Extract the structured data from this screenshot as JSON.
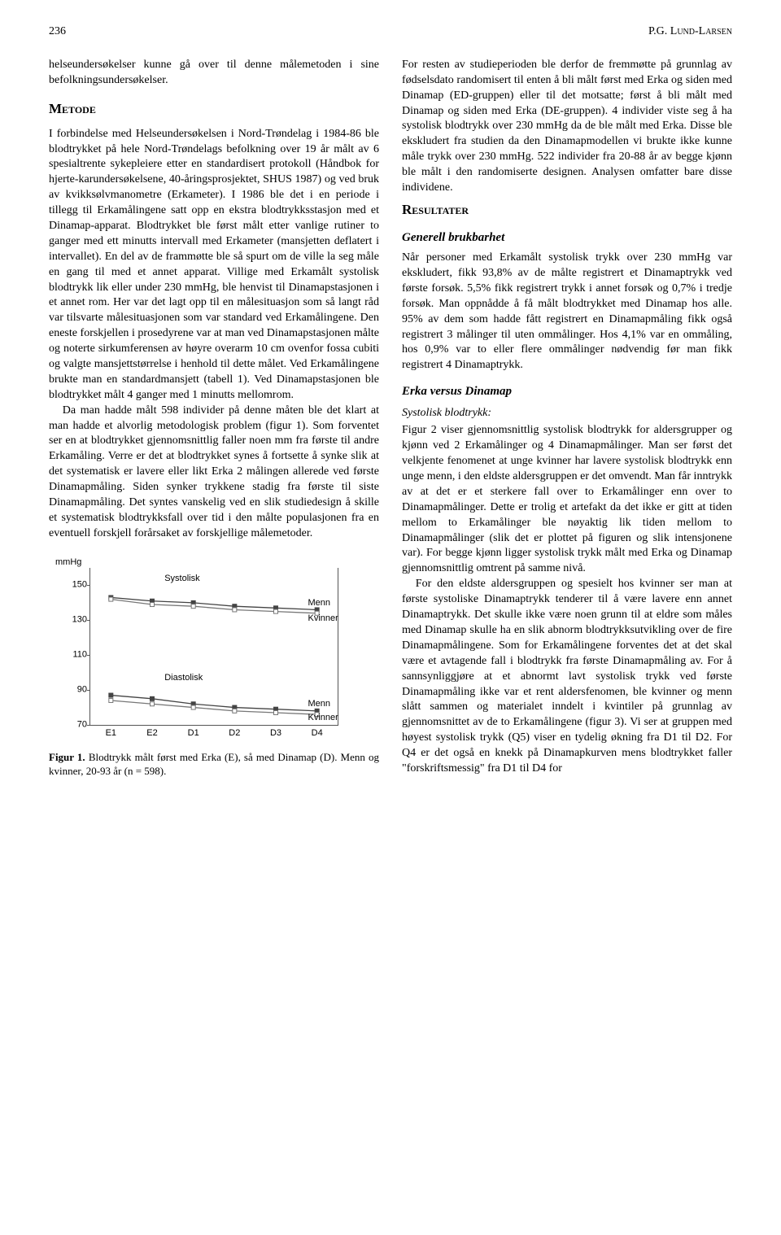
{
  "header": {
    "page_number": "236",
    "author_header": "P.G. Lund-Larsen"
  },
  "left_col": {
    "intro": "helseundersøkelser kunne gå over til denne målemetoden i sine befolkningsundersøkelser.",
    "metode_heading": "Metode",
    "metode_body": "I forbindelse med Helseundersøkelsen i Nord-Trøndelag i 1984-86 ble blodtrykket på hele Nord-Trøndelags befolkning over 19 år målt av 6 spesialtrente sykepleiere etter en standardisert protokoll (Håndbok for hjerte-karundersøkelsene, 40-åringsprosjektet, SHUS 1987) og ved bruk av kvikksølvmanometre (Erkameter). I 1986 ble det i en periode i tillegg til Erkamålingene satt opp en ekstra blodtrykksstasjon med et Dinamap-apparat. Blodtrykket ble først målt etter vanlige rutiner to ganger med ett minutts intervall med Erkameter (mansjetten deflatert i intervallet). En del av de frammøtte ble så spurt om de ville la seg måle en gang til med et annet apparat. Villige med Erkamålt systolisk blodtrykk lik eller under 230 mmHg, ble henvist til Dinamapstasjonen i et annet rom. Her var det lagt opp til en målesituasjon som så langt råd var tilsvarte målesituasjonen som var standard ved Erkamålingene. Den eneste forskjellen i prosedyrene var at man ved Dinamapstasjonen målte og noterte sirkumferensen av høyre overarm 10 cm ovenfor fossa cubiti og valgte mansjettstørrelse i henhold til dette målet. Ved Erkamålingene brukte man en standardmansjett (tabell 1). Ved Dinamapstasjonen ble blodtrykket målt 4 ganger med 1 minutts mellomrom.",
    "metode_body2": "Da man hadde målt 598 individer på denne måten ble det klart at man hadde et alvorlig metodologisk problem (figur 1). Som forventet ser en at blodtrykket gjennomsnittlig faller noen mm fra første til andre Erkamåling. Verre er det at blodtrykket synes å fortsette å synke slik at det systematisk er lavere eller likt Erka 2 målingen allerede ved første Dinamapmåling. Siden synker trykkene stadig fra første til siste Dinamapmåling. Det syntes vanskelig ved en slik studiedesign å skille et systematisk blodtrykksfall over tid i den målte populasjonen fra en eventuell forskjell forårsaket av forskjellige målemetoder.",
    "caption_label": "Figur 1.",
    "caption_text": "Blodtrykk målt først med Erka (E), så med Dinamap (D). Menn og kvinner, 20-93 år (n = 598)."
  },
  "right_col": {
    "para1": "For resten av studieperioden ble derfor de fremmøtte på grunnlag av fødselsdato randomisert til enten å bli målt først med Erka og siden med Dinamap (ED-gruppen) eller til det motsatte; først å bli målt med Dinamap og siden med Erka (DE-gruppen). 4 individer viste seg å ha systolisk blodtrykk over 230 mmHg da de ble målt med Erka. Disse ble ekskludert fra studien da den Dinamapmodellen vi brukte ikke kunne måle trykk over 230 mmHg. 522 individer fra 20-88 år av begge kjønn ble målt i den randomiserte designen. Analysen omfatter bare disse individene.",
    "resultater_heading": "Resultater",
    "sub1": "Generell brukbarhet",
    "para2": "Når personer med Erkamålt systolisk trykk over 230 mmHg var ekskludert, fikk 93,8% av de målte registrert et Dinamaptrykk ved første forsøk. 5,5% fikk registrert trykk i annet forsøk og 0,7% i tredje forsøk. Man oppnådde å få målt blodtrykket med Dinamap hos alle. 95% av dem som hadde fått registrert en Dinamapmåling fikk også registrert 3 målinger til uten ommålinger. Hos 4,1% var en ommåling, hos 0,9% var to eller flere ommålinger nødvendig før man fikk registrert 4 Dinamaptrykk.",
    "sub2": "Erka versus Dinamap",
    "sub2b": "Systolisk blodtrykk:",
    "para3": "Figur 2 viser gjennomsnittlig systolisk blodtrykk for aldersgrupper og kjønn ved 2 Erkamålinger og 4 Dinamapmålinger. Man ser først det velkjente fenomenet at unge kvinner har lavere systolisk blodtrykk enn unge menn, i den eldste aldersgruppen er det omvendt. Man får inntrykk av at det er et sterkere fall over to Erkamålinger enn over to Dinamapmålinger. Dette er trolig et artefakt da det ikke er gitt at tiden mellom to Erkamålinger ble nøyaktig lik tiden mellom to Dinamapmålinger (slik det er plottet på figuren og slik intensjonene var). For begge kjønn ligger systolisk trykk målt med Erka og Dinamap gjennomsnittlig omtrent på samme nivå.",
    "para4": "For den eldste aldersgruppen og spesielt hos kvinner ser man at første systoliske Dinamaptrykk tenderer til å være lavere enn annet Dinamaptrykk. Det skulle ikke være noen grunn til at eldre som måles med Dinamap skulle ha en slik abnorm blodtrykksutvikling over de fire Dinamapmålingene. Som for Erkamålingene forventes det at det skal være et avtagende fall i blodtrykk fra første Dinamapmåling av. For å sannsynliggjøre at et abnormt lavt systolisk trykk ved første Dinamapmåling ikke var et rent aldersfenomen, ble kvinner og menn slått sammen og materialet inndelt i kvintiler på grunnlag av gjennomsnittet av de to Erkamålingene (figur 3). Vi ser at gruppen med høyest systolisk trykk (Q5) viser en tydelig økning fra D1 til D2. For Q4 er det også en knekk på Dinamapkurven mens blodtrykket faller \"forskriftsmessig\" fra D1 til D4 for"
  },
  "chart": {
    "type": "line",
    "y_unit": "mmHg",
    "ylim": [
      70,
      160
    ],
    "yticks": [
      70,
      90,
      110,
      130,
      150
    ],
    "x_labels": [
      "E1",
      "E2",
      "D1",
      "D2",
      "D3",
      "D4"
    ],
    "groups": {
      "systolisk_label": "Systolisk",
      "diastolisk_label": "Diastolisk"
    },
    "series": {
      "sys_menn": {
        "label": "Menn",
        "values": [
          143,
          141,
          140,
          138,
          137,
          136
        ],
        "color": "#444",
        "marker": "square"
      },
      "sys_kvinner": {
        "label": "Kvinner",
        "values": [
          142,
          139,
          138,
          136,
          135,
          134
        ],
        "color": "#777",
        "marker": "square-open"
      },
      "dia_menn": {
        "label": "Menn",
        "values": [
          87,
          85,
          82,
          80,
          79,
          78
        ],
        "color": "#444",
        "marker": "square"
      },
      "dia_kvinner": {
        "label": "Kvinner",
        "values": [
          84,
          82,
          80,
          78,
          77,
          76
        ],
        "color": "#777",
        "marker": "square-open"
      }
    },
    "background": "#ffffff",
    "axis_color": "#555555",
    "font_family": "Arial",
    "label_fontsize": 11
  }
}
